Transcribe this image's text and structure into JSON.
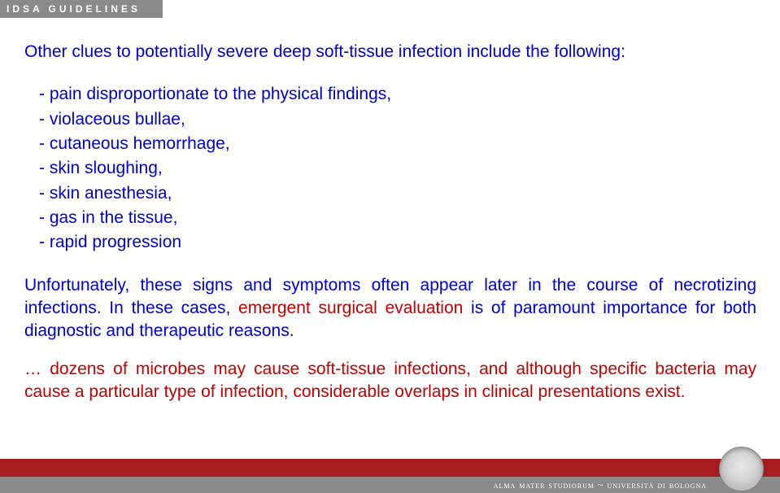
{
  "header": {
    "label": "IDSA GUIDELINES"
  },
  "body": {
    "heading": "Other clues to potentially severe deep soft-tissue infection include the following:",
    "bullets": [
      "pain disproportionate to the physical findings,",
      "violaceous bullae,",
      "cutaneous hemorrhage,",
      "skin sloughing,",
      "skin anesthesia,",
      "gas in the tissue,",
      "rapid progression"
    ],
    "unfortunately_pre": "Unfortunately, these signs and symptoms often appear later in the course of necrotizing infections. In these cases, ",
    "unfortunately_emph": "emergent surgical evaluation",
    "unfortunately_post": " is of paramount importance for both diagnostic and therapeutic reasons.",
    "dozens": "… dozens of microbes may cause soft-tissue infections, and although specific bacteria may cause a particular type of infection, considerable overlaps in clinical presentations exist."
  },
  "footer": {
    "text": "alma mater studiorum ~ università di bologna"
  },
  "style": {
    "text_color": "#0000c8",
    "highlight_color": "#c00000",
    "footer_red": "#a61b1b",
    "footer_gray": "#8a8a8a",
    "font_size_pt": 21
  }
}
